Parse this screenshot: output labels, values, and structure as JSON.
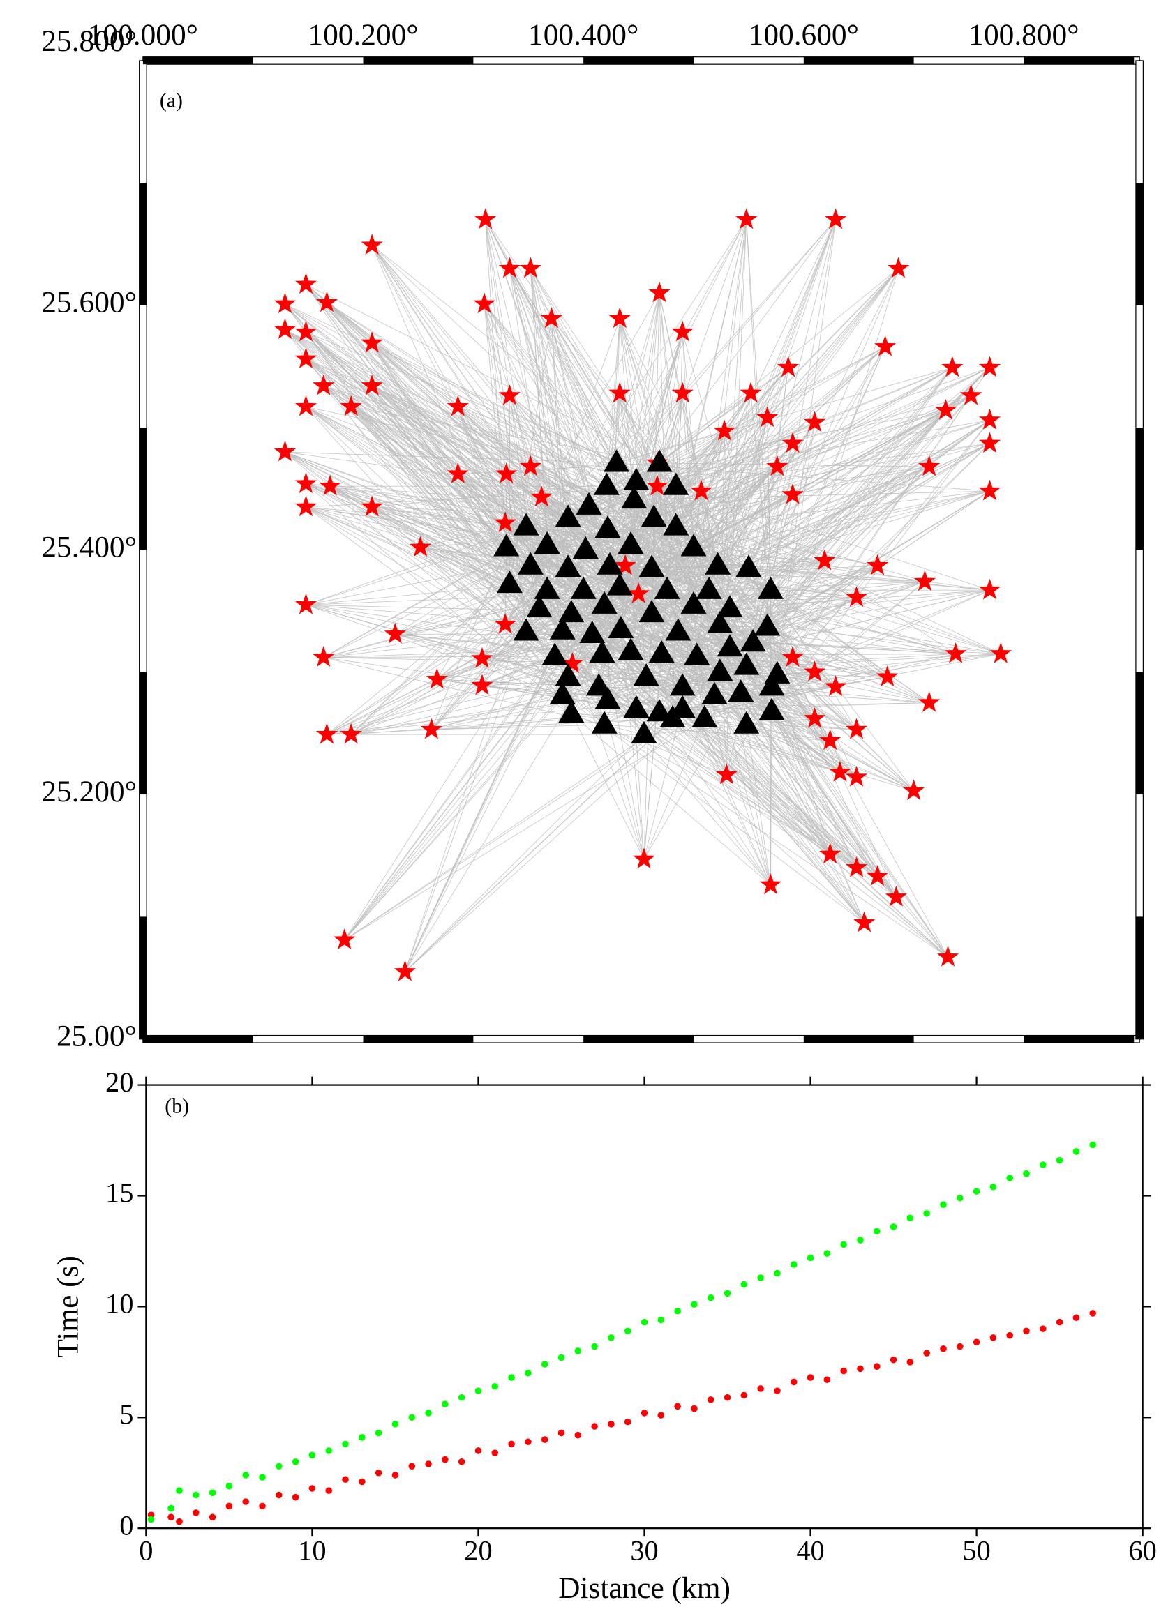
{
  "chart_data": [
    {
      "type": "map",
      "label": "(a)",
      "xlim": [
        100.0,
        100.905
      ],
      "ylim": [
        25.0,
        25.8
      ],
      "xticks": [
        {
          "value": 100.0,
          "label": "100.000°"
        },
        {
          "value": 100.2,
          "label": "100.200°"
        },
        {
          "value": 100.4,
          "label": "100.400°"
        },
        {
          "value": 100.6,
          "label": "100.600°"
        },
        {
          "value": 100.8,
          "label": "100.800°"
        }
      ],
      "yticks": [
        {
          "value": 25.0,
          "label": "25.00°"
        },
        {
          "value": 25.2,
          "label": "25.200°"
        },
        {
          "value": 25.4,
          "label": "25.400°"
        },
        {
          "value": 25.6,
          "label": "25.600°"
        },
        {
          "value": 25.8,
          "label": "25.800°"
        }
      ],
      "ray_color": "#bdbdbd",
      "series": [
        {
          "marker": "star",
          "color": "#ff0000",
          "x": [
            100.311,
            100.548,
            100.629,
            100.208,
            100.686,
            100.148,
            100.129,
            100.129,
            100.167,
            100.148,
            100.333,
            100.352,
            100.31,
            100.371,
            100.433,
            100.469,
            100.49,
            100.674,
            100.208,
            100.208,
            100.148,
            100.148,
            100.164,
            100.189,
            100.286,
            100.333,
            100.433,
            100.49,
            100.552,
            100.586,
            100.735,
            100.769,
            100.769,
            100.769,
            100.752,
            100.729,
            100.528,
            100.567,
            100.61,
            100.59,
            100.576,
            100.59,
            100.129,
            100.148,
            100.17,
            100.148,
            100.208,
            100.286,
            100.33,
            100.352,
            100.362,
            100.467,
            100.507,
            100.714,
            100.769,
            100.252,
            100.329,
            100.148,
            100.229,
            100.164,
            100.329,
            100.308,
            100.308,
            100.267,
            100.45,
            100.619,
            100.648,
            100.667,
            100.71,
            100.769,
            100.779,
            100.738,
            100.676,
            100.714,
            100.59,
            100.61,
            100.629,
            100.61,
            100.624,
            100.648,
            100.648,
            100.633,
            100.167,
            100.189,
            100.262,
            100.53,
            100.7,
            100.455,
            100.624,
            100.648,
            100.667,
            100.57,
            100.684,
            100.655,
            100.183,
            100.238,
            100.731,
            100.39,
            100.438,
            100.467
          ],
          "values": [
            25.67,
            25.67,
            25.67,
            25.649,
            25.63,
            25.617,
            25.601,
            25.58,
            25.602,
            25.578,
            25.63,
            25.63,
            25.601,
            25.589,
            25.589,
            25.61,
            25.578,
            25.566,
            25.569,
            25.534,
            25.556,
            25.517,
            25.534,
            25.517,
            25.517,
            25.526,
            25.528,
            25.528,
            25.528,
            25.549,
            25.549,
            25.549,
            25.506,
            25.487,
            25.526,
            25.514,
            25.497,
            25.508,
            25.504,
            25.487,
            25.468,
            25.445,
            25.48,
            25.454,
            25.452,
            25.435,
            25.435,
            25.462,
            25.462,
            25.468,
            25.443,
            25.471,
            25.448,
            25.468,
            25.448,
            25.402,
            25.422,
            25.355,
            25.331,
            25.312,
            25.339,
            25.311,
            25.289,
            25.294,
            25.364,
            25.391,
            25.361,
            25.387,
            25.374,
            25.367,
            25.315,
            25.315,
            25.296,
            25.275,
            25.312,
            25.3,
            25.288,
            25.262,
            25.244,
            25.253,
            25.214,
            25.218,
            25.249,
            25.249,
            25.253,
            25.216,
            25.203,
            25.147,
            25.151,
            25.14,
            25.133,
            25.126,
            25.116,
            25.095,
            25.081,
            25.055,
            25.067,
            25.307,
            25.387,
            25.452
          ]
        },
        {
          "marker": "triangle",
          "color": "#000000",
          "x": [
            100.43,
            100.469,
            100.448,
            100.484,
            100.421,
            100.405,
            100.446,
            100.386,
            100.464,
            100.348,
            100.422,
            100.484,
            100.33,
            100.367,
            100.443,
            100.402,
            100.352,
            100.386,
            100.424,
            100.462,
            100.5,
            100.522,
            100.55,
            100.333,
            100.367,
            100.4,
            100.433,
            100.476,
            100.514,
            100.57,
            100.36,
            100.389,
            100.419,
            100.462,
            100.5,
            100.533,
            100.348,
            100.381,
            100.408,
            100.434,
            100.486,
            100.524,
            100.567,
            100.374,
            100.417,
            100.443,
            100.471,
            100.503,
            100.533,
            100.554,
            100.386,
            100.414,
            100.457,
            100.49,
            100.524,
            100.548,
            100.576,
            100.381,
            100.422,
            100.448,
            100.469,
            100.49,
            100.519,
            100.543,
            100.571,
            100.389,
            100.419,
            100.455,
            100.481,
            100.51,
            100.548,
            100.571
          ],
          "values": [
            25.471,
            25.471,
            25.456,
            25.452,
            25.452,
            25.436,
            25.441,
            25.426,
            25.426,
            25.419,
            25.417,
            25.419,
            25.402,
            25.404,
            25.404,
            25.4,
            25.387,
            25.385,
            25.387,
            25.385,
            25.402,
            25.387,
            25.385,
            25.372,
            25.367,
            25.367,
            25.37,
            25.367,
            25.367,
            25.367,
            25.352,
            25.348,
            25.355,
            25.348,
            25.355,
            25.352,
            25.333,
            25.334,
            25.331,
            25.335,
            25.333,
            25.339,
            25.337,
            25.313,
            25.315,
            25.317,
            25.315,
            25.313,
            25.32,
            25.324,
            25.296,
            25.288,
            25.296,
            25.288,
            25.3,
            25.305,
            25.298,
            25.281,
            25.277,
            25.27,
            25.267,
            25.27,
            25.281,
            25.283,
            25.268,
            25.266,
            25.257,
            25.249,
            25.262,
            25.262,
            25.257,
            25.288
          ]
        }
      ]
    },
    {
      "type": "scatter",
      "label": "(b)",
      "x_label": "Distance (km)",
      "y_label": "Time (s)",
      "xlim": [
        0,
        60
      ],
      "ylim": [
        0,
        20
      ],
      "xticks": [
        0,
        10,
        20,
        30,
        40,
        50,
        60
      ],
      "yticks": [
        0,
        5,
        10,
        15,
        20
      ],
      "x": [
        0.3,
        1.5,
        2,
        3,
        4,
        5,
        6,
        7,
        8,
        9,
        10,
        11,
        12,
        13,
        14,
        15,
        16,
        17,
        18,
        19,
        20,
        21,
        22,
        23,
        24,
        25,
        26,
        27,
        28,
        29,
        30,
        31,
        32,
        33,
        34,
        35,
        36,
        37,
        38,
        39,
        40,
        41,
        42,
        43,
        44,
        45,
        46,
        47,
        48,
        49,
        50,
        51,
        52,
        53,
        54,
        55,
        56,
        57
      ],
      "series": [
        {
          "color": "#ff0000",
          "values": [
            0.6,
            0.5,
            0.3,
            0.7,
            0.5,
            1.0,
            1.2,
            1.0,
            1.5,
            1.4,
            1.8,
            1.7,
            2.2,
            2.1,
            2.5,
            2.4,
            2.8,
            2.9,
            3.1,
            3.0,
            3.5,
            3.4,
            3.8,
            3.9,
            4.0,
            4.3,
            4.2,
            4.6,
            4.7,
            4.8,
            5.2,
            5.1,
            5.5,
            5.4,
            5.8,
            5.9,
            6.0,
            6.3,
            6.2,
            6.6,
            6.8,
            6.7,
            7.1,
            7.2,
            7.3,
            7.6,
            7.5,
            7.9,
            8.1,
            8.2,
            8.4,
            8.6,
            8.7,
            8.9,
            9.0,
            9.3,
            9.5,
            9.7
          ]
        },
        {
          "color": "#00ff00",
          "values": [
            0.4,
            0.9,
            1.7,
            1.5,
            1.6,
            1.9,
            2.4,
            2.3,
            2.8,
            3.0,
            3.3,
            3.5,
            3.8,
            4.1,
            4.3,
            4.7,
            5.0,
            5.2,
            5.6,
            5.9,
            6.2,
            6.4,
            6.8,
            7.0,
            7.4,
            7.7,
            8.0,
            8.2,
            8.6,
            8.9,
            9.3,
            9.4,
            9.8,
            10.1,
            10.4,
            10.6,
            11.0,
            11.3,
            11.5,
            11.9,
            12.2,
            12.4,
            12.8,
            13.0,
            13.4,
            13.6,
            14.0,
            14.2,
            14.6,
            14.9,
            15.2,
            15.4,
            15.8,
            16.0,
            16.4,
            16.6,
            17.0,
            17.3
          ]
        }
      ]
    }
  ]
}
